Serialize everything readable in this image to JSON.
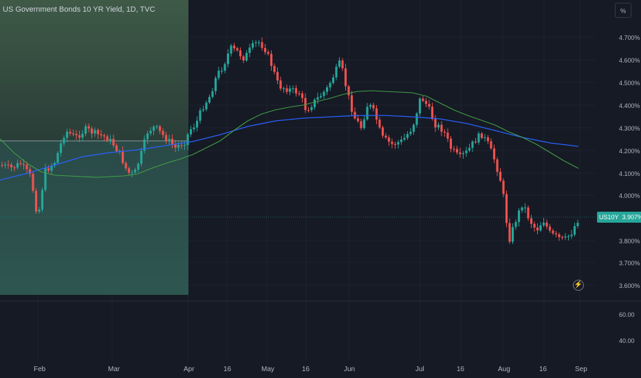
{
  "header": {
    "title": "US Government Bonds 10 YR Yield, 1D, TVC",
    "scale_mode": "%"
  },
  "price_axis": {
    "ticks": [
      "4.700%",
      "4.600%",
      "4.500%",
      "4.400%",
      "4.300%",
      "4.200%",
      "4.100%",
      "4.000%",
      "3.800%",
      "3.700%",
      "3.600%"
    ]
  },
  "indicator_axis": {
    "ticks": [
      "60.00",
      "40.00"
    ]
  },
  "time_axis": {
    "ticks": [
      "Feb",
      "Mar",
      "Apr",
      "16",
      "May",
      "16",
      "Jun",
      "Jul",
      "16",
      "Aug",
      "16",
      "Sep"
    ]
  },
  "last_price": {
    "symbol": "US10Y",
    "value": "3.907%"
  },
  "colors": {
    "up": "#26a69a",
    "down": "#ef5350",
    "ma_short": "#43a047",
    "ma_long": "#2962ff",
    "background": "#161a25"
  },
  "icons": {
    "flash": "lightning-icon"
  }
}
